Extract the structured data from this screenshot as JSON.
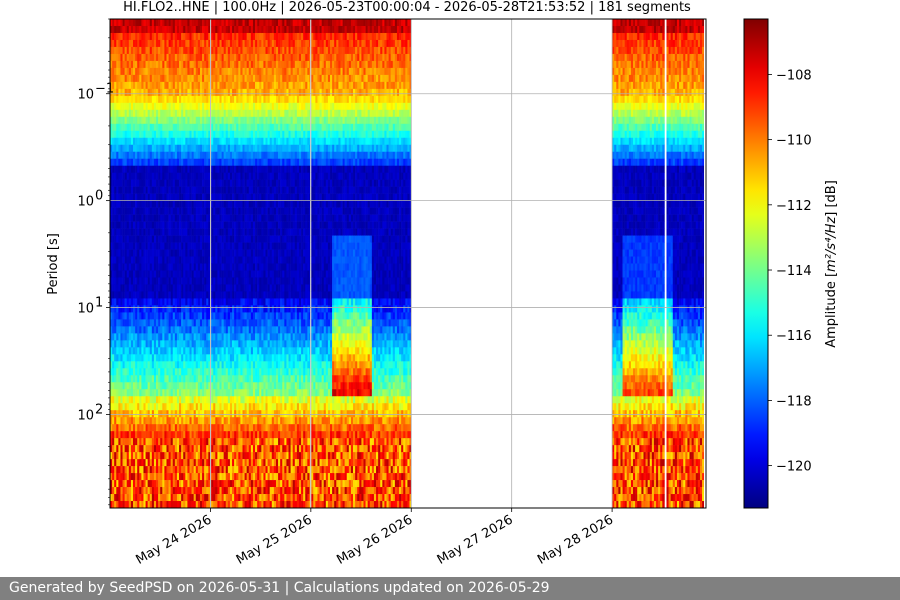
{
  "chart_data": {
    "type": "heatmap",
    "title": "HI.FLO2..HNE | 100.0Hz | 2026-05-23T00:00:04 - 2026-05-28T21:53:52 | 181 segments",
    "xlabel": "",
    "ylabel": "Period [s]",
    "y_scale": "log",
    "y_inverted": true,
    "ylim": [
      0.02,
      750
    ],
    "x_range": [
      "2026-05-23T00:00:04",
      "2026-05-28T21:53:52"
    ],
    "x_ticks": [
      {
        "date": "2026-05-24",
        "label": "May 24 2026"
      },
      {
        "date": "2026-05-25",
        "label": "May 25 2026"
      },
      {
        "date": "2026-05-26",
        "label": "May 26 2026"
      },
      {
        "date": "2026-05-27",
        "label": "May 27 2026"
      },
      {
        "date": "2026-05-28",
        "label": "May 28 2026"
      }
    ],
    "y_ticks": [
      {
        "value": 0.1,
        "base": "10",
        "exp": "−1"
      },
      {
        "value": 1,
        "base": "10",
        "exp": "0"
      },
      {
        "value": 10,
        "base": "10",
        "exp": "1"
      },
      {
        "value": 100,
        "base": "10",
        "exp": "2"
      }
    ],
    "grid": true,
    "colormap": "jet",
    "colorbar": {
      "label_prefix": "Amplitude [",
      "label_math": "m²/s⁴/Hz",
      "label_suffix": "] [dB]",
      "range": [
        -121.3,
        -106.3
      ],
      "ticks": [
        -108,
        -110,
        -112,
        -114,
        -116,
        -118,
        -120
      ],
      "tick_labels": [
        "−108",
        "−110",
        "−112",
        "−114",
        "−116",
        "−118",
        "−120"
      ]
    },
    "data_segments": [
      {
        "start": "2026-05-23T00:00:04",
        "end": "2026-05-23T23:50:00"
      },
      {
        "start": "2026-05-24T00:10:00",
        "end": "2026-05-24T23:45:00"
      },
      {
        "start": "2026-05-25T00:05:00",
        "end": "2026-05-25T23:55:00"
      },
      {
        "start": "2026-05-28T00:00:00",
        "end": "2026-05-28T12:30:00"
      },
      {
        "start": "2026-05-28T13:00:00",
        "end": "2026-05-28T21:53:52"
      }
    ],
    "segment_count": 181
  },
  "footer": {
    "text": "Generated by SeedPSD on 2026-05-31 | Calculations updated on 2026-05-29"
  }
}
